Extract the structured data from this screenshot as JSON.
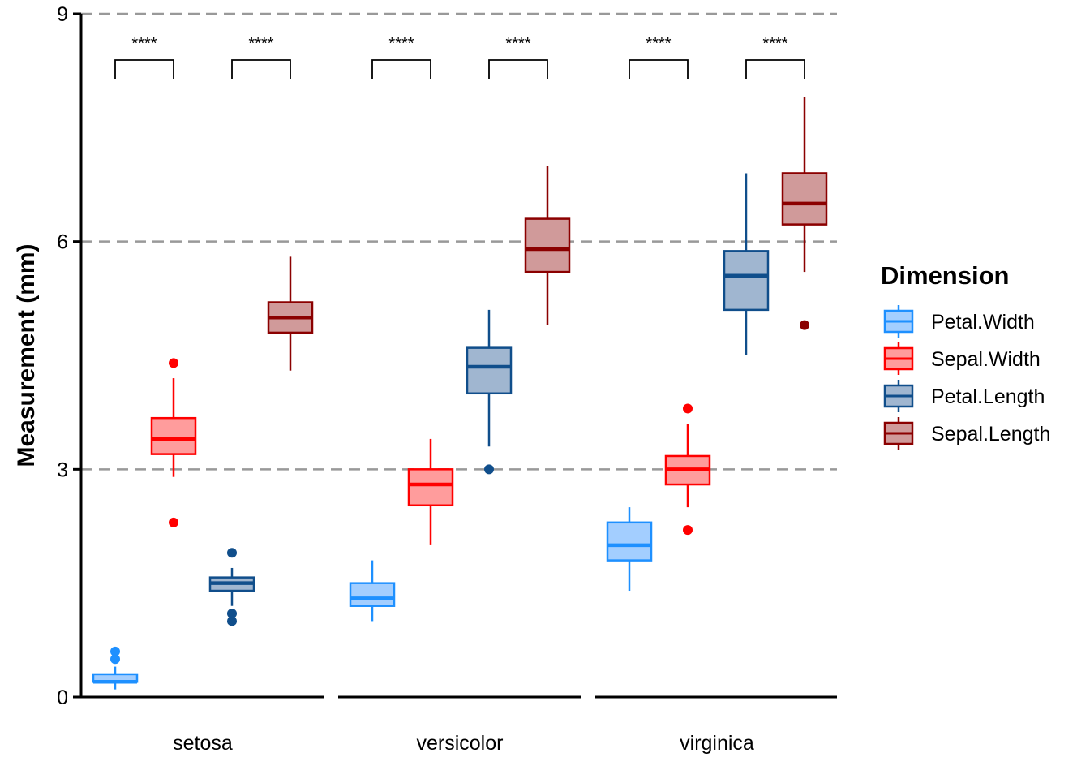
{
  "chart_data": {
    "type": "boxplot",
    "ylabel": "Measurement (mm)",
    "ylim": [
      0,
      9
    ],
    "yticks": [
      0,
      3,
      6,
      9
    ],
    "gridlines": [
      3,
      6,
      9
    ],
    "categories": [
      "setosa",
      "versicolor",
      "virginica"
    ],
    "legend": {
      "title": "Dimension",
      "position": "right",
      "entries": [
        "Petal.Width",
        "Sepal.Width",
        "Petal.Length",
        "Sepal.Length"
      ]
    },
    "series": [
      {
        "name": "Petal.Width",
        "color": "#1E90FF",
        "fill": "#A3CEFF",
        "boxes": [
          {
            "category": "setosa",
            "whisker_low": 0.1,
            "q1": 0.2,
            "median": 0.2,
            "q3": 0.3,
            "whisker_high": 0.4,
            "outliers": [
              0.5,
              0.6
            ]
          },
          {
            "category": "versicolor",
            "whisker_low": 1.0,
            "q1": 1.2,
            "median": 1.3,
            "q3": 1.5,
            "whisker_high": 1.8,
            "outliers": []
          },
          {
            "category": "virginica",
            "whisker_low": 1.4,
            "q1": 1.8,
            "median": 2.0,
            "q3": 2.3,
            "whisker_high": 2.5,
            "outliers": []
          }
        ]
      },
      {
        "name": "Sepal.Width",
        "color": "#FF0000",
        "fill": "#FF9C9C",
        "boxes": [
          {
            "category": "setosa",
            "whisker_low": 2.9,
            "q1": 3.2,
            "median": 3.4,
            "q3": 3.675,
            "whisker_high": 4.2,
            "outliers": [
              2.3,
              4.4
            ]
          },
          {
            "category": "versicolor",
            "whisker_low": 2.0,
            "q1": 2.525,
            "median": 2.8,
            "q3": 3.0,
            "whisker_high": 3.4,
            "outliers": []
          },
          {
            "category": "virginica",
            "whisker_low": 2.5,
            "q1": 2.8,
            "median": 3.0,
            "q3": 3.175,
            "whisker_high": 3.6,
            "outliers": [
              2.2,
              3.8
            ]
          }
        ]
      },
      {
        "name": "Petal.Length",
        "color": "#104E8B",
        "fill": "#A0B6D0",
        "boxes": [
          {
            "category": "setosa",
            "whisker_low": 1.2,
            "q1": 1.4,
            "median": 1.5,
            "q3": 1.575,
            "whisker_high": 1.7,
            "outliers": [
              1.0,
              1.1,
              1.9
            ]
          },
          {
            "category": "versicolor",
            "whisker_low": 3.3,
            "q1": 4.0,
            "median": 4.35,
            "q3": 4.6,
            "whisker_high": 5.1,
            "outliers": [
              3.0
            ]
          },
          {
            "category": "virginica",
            "whisker_low": 4.5,
            "q1": 5.1,
            "median": 5.55,
            "q3": 5.875,
            "whisker_high": 6.9,
            "outliers": []
          }
        ]
      },
      {
        "name": "Sepal.Length",
        "color": "#8B0000",
        "fill": "#D09A9A",
        "boxes": [
          {
            "category": "setosa",
            "whisker_low": 4.3,
            "q1": 4.8,
            "median": 5.0,
            "q3": 5.2,
            "whisker_high": 5.8,
            "outliers": []
          },
          {
            "category": "versicolor",
            "whisker_low": 4.9,
            "q1": 5.6,
            "median": 5.9,
            "q3": 6.3,
            "whisker_high": 7.0,
            "outliers": []
          },
          {
            "category": "virginica",
            "whisker_low": 5.6,
            "q1": 6.225,
            "median": 6.5,
            "q3": 6.9,
            "whisker_high": 7.9,
            "outliers": [
              4.9
            ]
          }
        ]
      }
    ],
    "annotations": [
      {
        "category": "setosa",
        "from": "Petal.Width",
        "to": "Sepal.Width",
        "label": "****"
      },
      {
        "category": "setosa",
        "from": "Petal.Length",
        "to": "Sepal.Length",
        "label": "****"
      },
      {
        "category": "versicolor",
        "from": "Petal.Width",
        "to": "Sepal.Width",
        "label": "****"
      },
      {
        "category": "versicolor",
        "from": "Petal.Length",
        "to": "Sepal.Length",
        "label": "****"
      },
      {
        "category": "virginica",
        "from": "Petal.Width",
        "to": "Sepal.Width",
        "label": "****"
      },
      {
        "category": "virginica",
        "from": "Petal.Length",
        "to": "Sepal.Length",
        "label": "****"
      }
    ]
  }
}
